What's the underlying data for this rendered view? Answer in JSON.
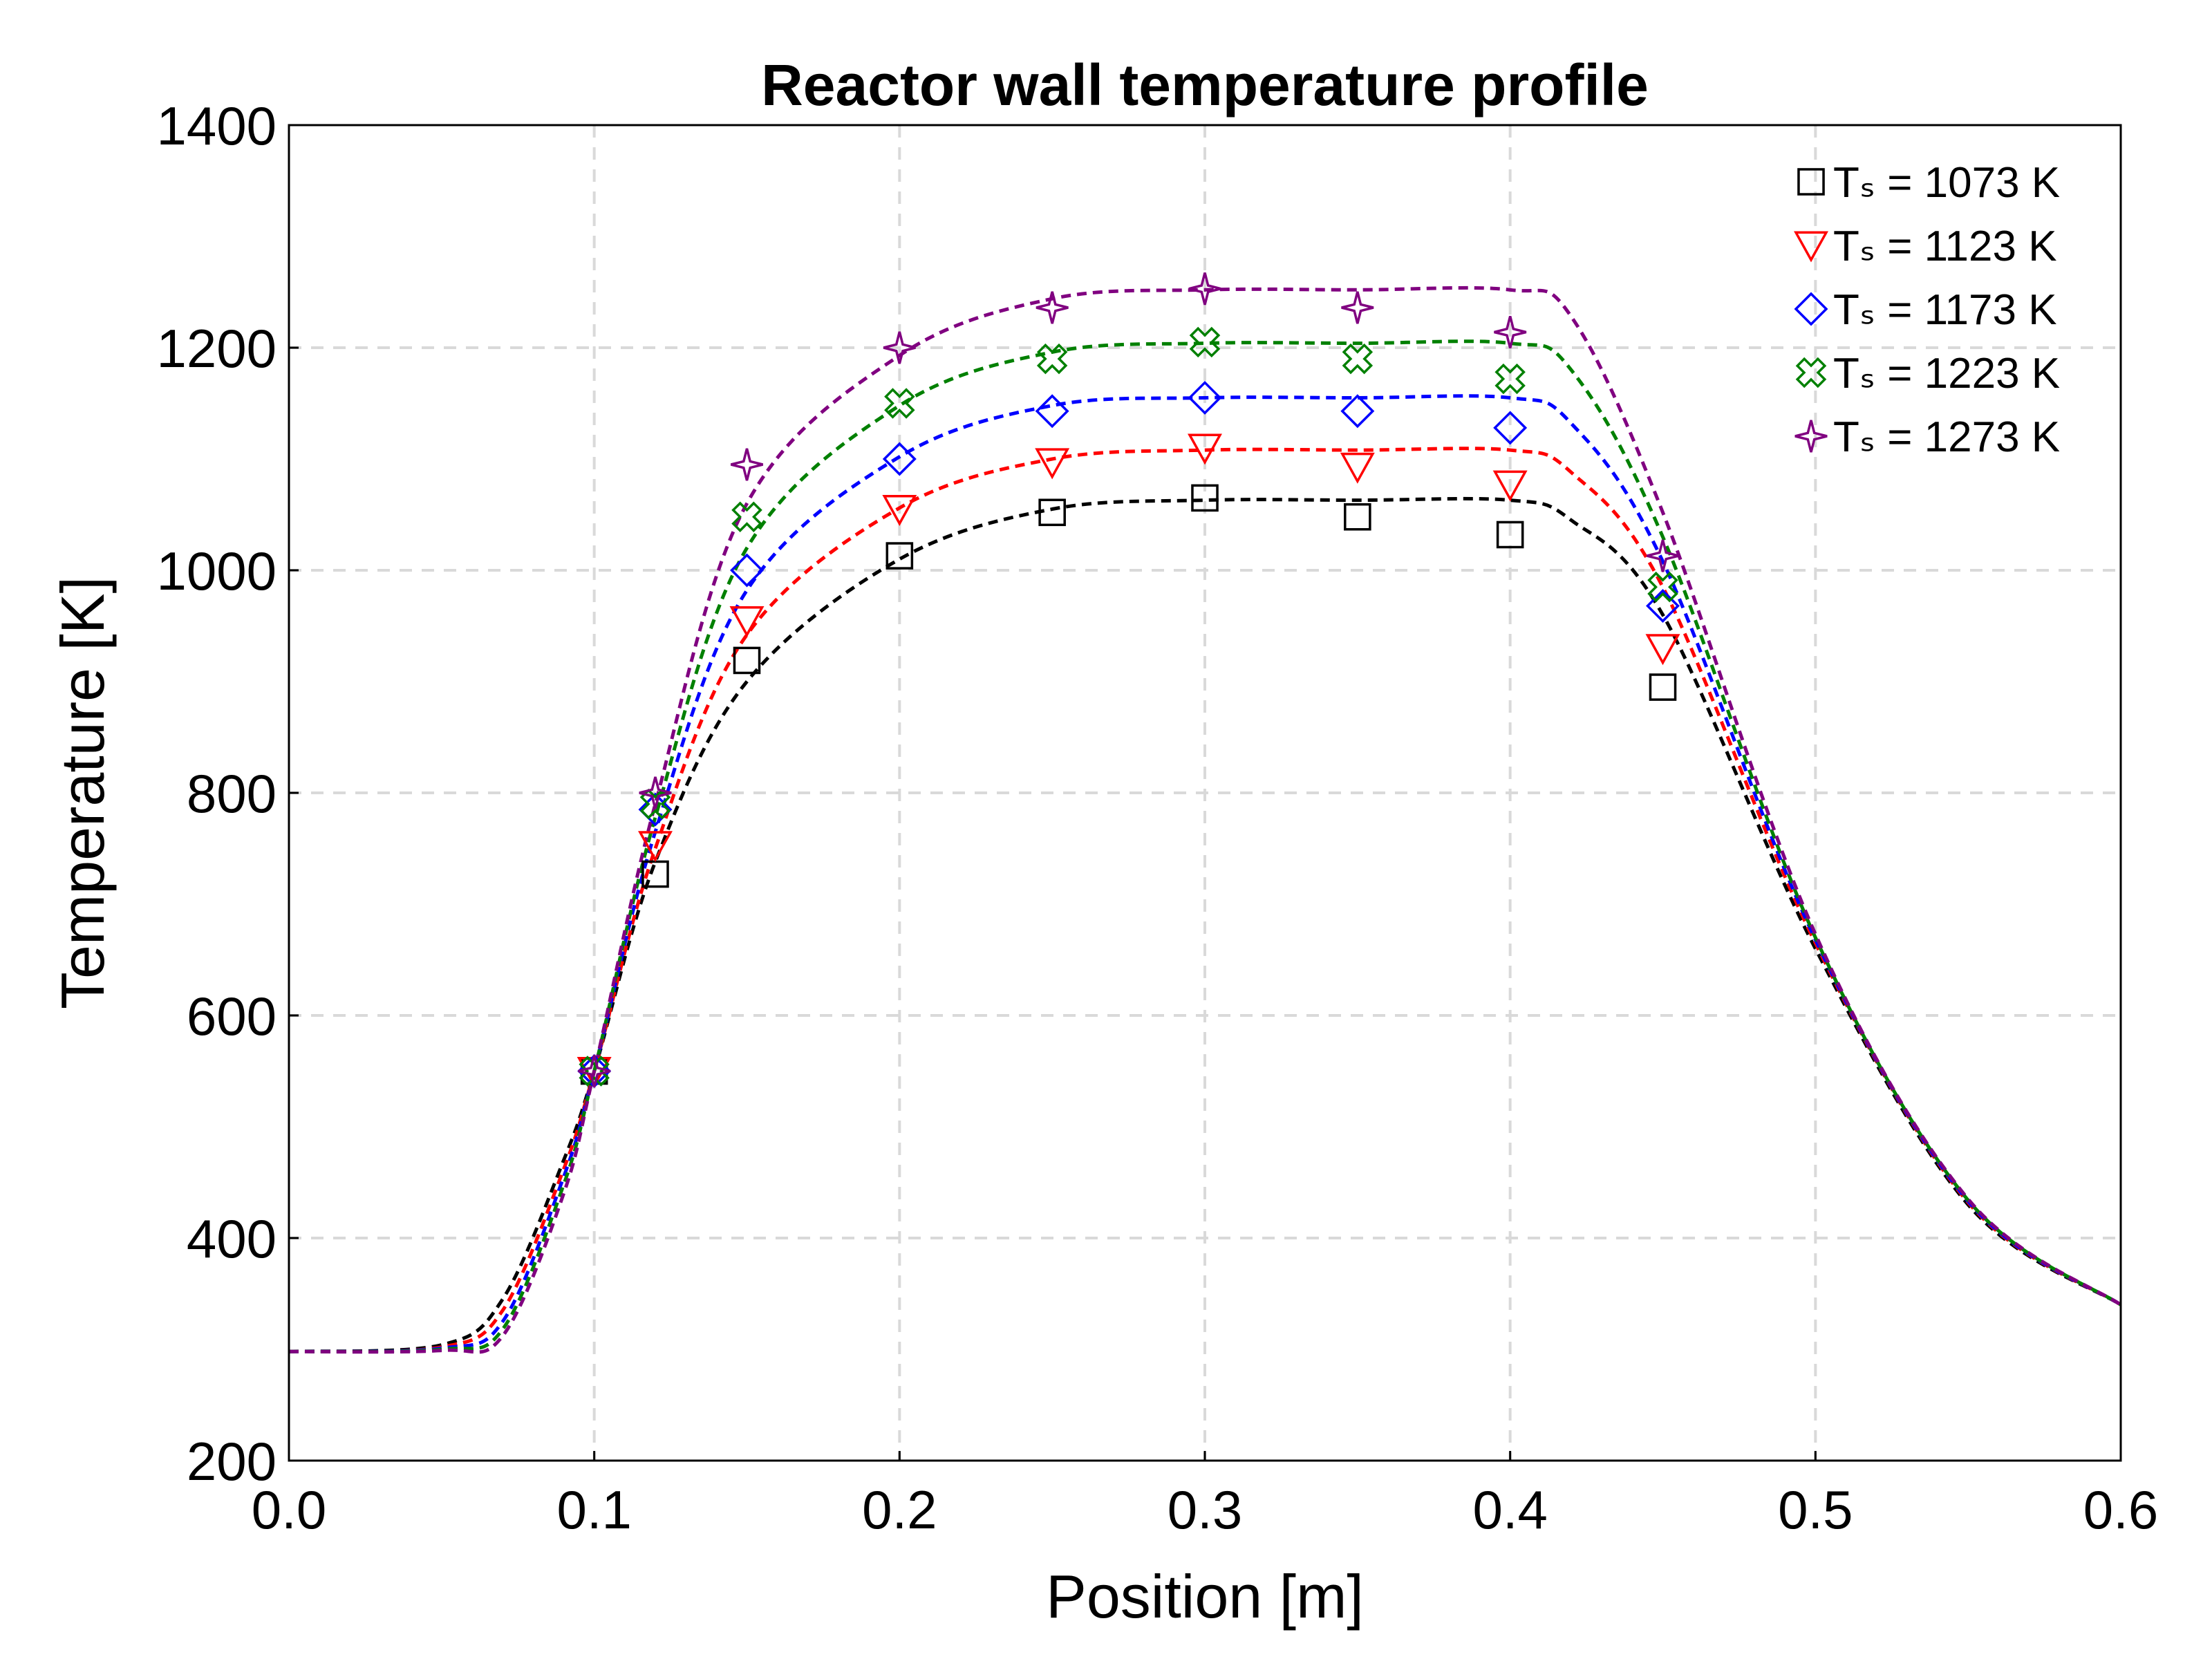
{
  "chart_data": {
    "type": "line",
    "title": "Reactor wall temperature profile",
    "xlabel": "Position [m]",
    "ylabel": "Temperature [K]",
    "xlim": [
      0.0,
      0.6
    ],
    "ylim": [
      200,
      1400
    ],
    "xticks": [
      "0.0",
      "0.1",
      "0.2",
      "0.3",
      "0.4",
      "0.5",
      "0.6"
    ],
    "yticks": [
      "200",
      "400",
      "600",
      "800",
      "1000",
      "1200",
      "1400"
    ],
    "grid": true,
    "legend_position": "top-right",
    "series": [
      {
        "name": "Tₛ = 1073 K",
        "color": "#000000",
        "marker": "square",
        "markers_x": [
          0.1,
          0.12,
          0.15,
          0.2,
          0.25,
          0.3,
          0.35,
          0.4,
          0.45
        ],
        "markers_y": [
          550,
          727,
          919,
          1013,
          1052,
          1065,
          1048,
          1032,
          895
        ],
        "curve_x": [
          0.0,
          0.05,
          0.07,
          0.09,
          0.1,
          0.12,
          0.15,
          0.2,
          0.25,
          0.3,
          0.35,
          0.4,
          0.42,
          0.45,
          0.5,
          0.55,
          0.6
        ],
        "curve_y": [
          298,
          304,
          345,
          470,
          550,
          738,
          900,
          1010,
          1055,
          1063,
          1063,
          1063,
          1045,
          960,
          660,
          430,
          340
        ]
      },
      {
        "name": "Tₛ = 1123 K",
        "color": "#ff0000",
        "marker": "triangle-down",
        "markers_x": [
          0.1,
          0.12,
          0.15,
          0.2,
          0.25,
          0.3,
          0.35,
          0.4,
          0.45
        ],
        "markers_y": [
          550,
          753,
          955,
          1055,
          1097,
          1110,
          1093,
          1077,
          930
        ],
        "curve_x": [
          0.0,
          0.05,
          0.07,
          0.09,
          0.1,
          0.12,
          0.15,
          0.2,
          0.25,
          0.3,
          0.35,
          0.4,
          0.42,
          0.45,
          0.5,
          0.55,
          0.6
        ],
        "curve_y": [
          298,
          302,
          335,
          462,
          550,
          750,
          942,
          1056,
          1100,
          1108,
          1108,
          1108,
          1088,
          985,
          665,
          432,
          340
        ]
      },
      {
        "name": "Tₛ = 1173 K",
        "color": "#0000ff",
        "marker": "diamond",
        "markers_x": [
          0.1,
          0.12,
          0.15,
          0.2,
          0.25,
          0.3,
          0.35,
          0.4,
          0.45
        ],
        "markers_y": [
          550,
          785,
          1000,
          1100,
          1143,
          1155,
          1143,
          1128,
          968
        ],
        "curve_x": [
          0.0,
          0.05,
          0.07,
          0.09,
          0.1,
          0.12,
          0.15,
          0.2,
          0.25,
          0.3,
          0.35,
          0.4,
          0.42,
          0.45,
          0.5,
          0.55,
          0.6
        ],
        "curve_y": [
          298,
          301,
          325,
          455,
          550,
          765,
          982,
          1102,
          1148,
          1155,
          1155,
          1155,
          1132,
          1008,
          668,
          433,
          340
        ]
      },
      {
        "name": "Tₛ = 1223 K",
        "color": "#008000",
        "marker": "cross",
        "markers_x": [
          0.1,
          0.12,
          0.15,
          0.2,
          0.25,
          0.3,
          0.35,
          0.4,
          0.45
        ],
        "markers_y": [
          550,
          790,
          1048,
          1150,
          1190,
          1205,
          1190,
          1172,
          985
        ],
        "curve_x": [
          0.0,
          0.05,
          0.07,
          0.09,
          0.1,
          0.12,
          0.15,
          0.2,
          0.25,
          0.3,
          0.35,
          0.4,
          0.42,
          0.45,
          0.5,
          0.55,
          0.6
        ],
        "curve_y": [
          298,
          300,
          318,
          448,
          550,
          778,
          1020,
          1148,
          1196,
          1204,
          1204,
          1204,
          1180,
          1030,
          670,
          434,
          340
        ]
      },
      {
        "name": "Tₛ = 1273 K",
        "color": "#800080",
        "marker": "star4",
        "markers_x": [
          0.1,
          0.12,
          0.15,
          0.2,
          0.25,
          0.3,
          0.35,
          0.4,
          0.45
        ],
        "markers_y": [
          550,
          800,
          1095,
          1200,
          1236,
          1253,
          1236,
          1214,
          1013
        ],
        "curve_x": [
          0.0,
          0.05,
          0.07,
          0.09,
          0.1,
          0.12,
          0.15,
          0.2,
          0.25,
          0.3,
          0.35,
          0.4,
          0.42,
          0.45,
          0.5,
          0.55,
          0.6
        ],
        "curve_y": [
          298,
          299,
          312,
          440,
          550,
          790,
          1060,
          1193,
          1244,
          1252,
          1252,
          1252,
          1228,
          1052,
          673,
          435,
          340
        ]
      }
    ]
  }
}
